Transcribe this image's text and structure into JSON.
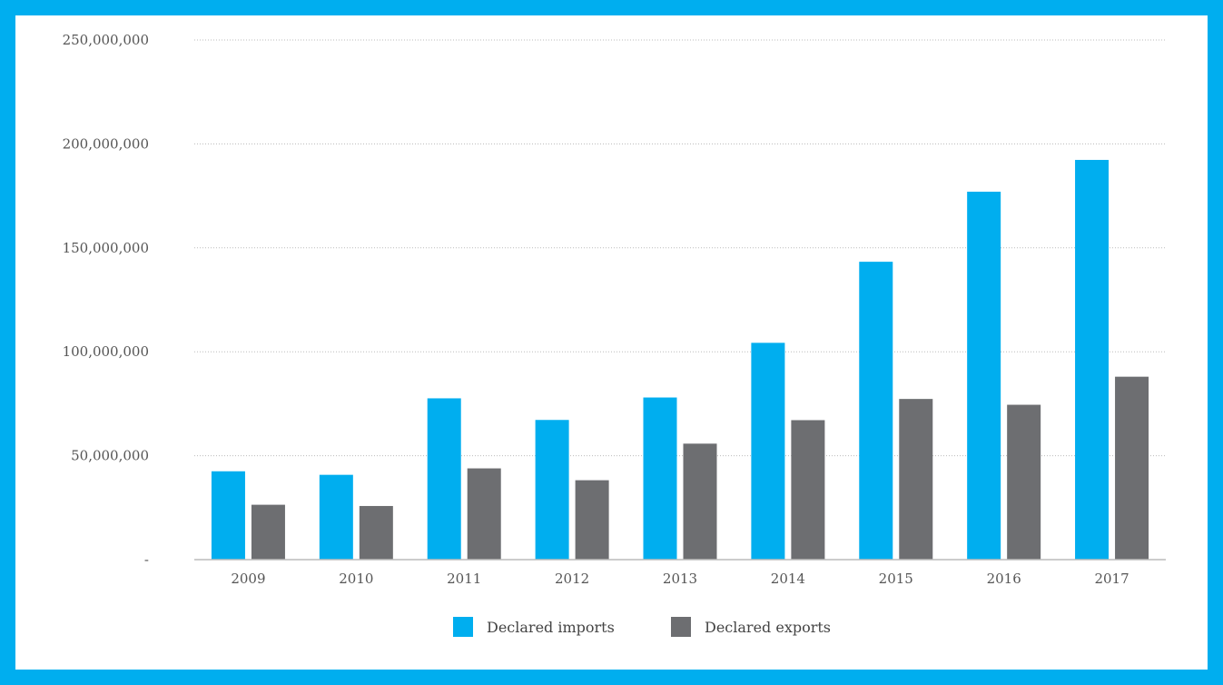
{
  "chart_data": {
    "type": "bar",
    "title": "",
    "xlabel": "",
    "ylabel": "",
    "categories": [
      "2009",
      "2010",
      "2011",
      "2012",
      "2013",
      "2014",
      "2015",
      "2016",
      "2017"
    ],
    "series": [
      {
        "name": "Declared imports",
        "color": "#00AEEF",
        "values": [
          42500000,
          40800000,
          77600000,
          67200000,
          78000000,
          104300000,
          143300000,
          177000000,
          192300000
        ]
      },
      {
        "name": "Declared exports",
        "color": "#6D6E71",
        "values": [
          26400000,
          25800000,
          43900000,
          38200000,
          55800000,
          67100000,
          77300000,
          74500000,
          88000000
        ]
      }
    ],
    "ylim": [
      0,
      250000000
    ],
    "yticks": [
      {
        "value": 0,
        "label": "-"
      },
      {
        "value": 50000000,
        "label": "50,000,000"
      },
      {
        "value": 100000000,
        "label": "100,000,000"
      },
      {
        "value": 150000000,
        "label": "150,000,000"
      },
      {
        "value": 200000000,
        "label": "200,000,000"
      },
      {
        "value": 250000000,
        "label": "250,000,000"
      }
    ],
    "grid": true,
    "legend_position": "bottom-center",
    "colors": {
      "frame": "#00AEEF",
      "background": "#FFFFFF",
      "gridline": "#BBBBBB",
      "baseline": "#BBBBBB"
    }
  }
}
